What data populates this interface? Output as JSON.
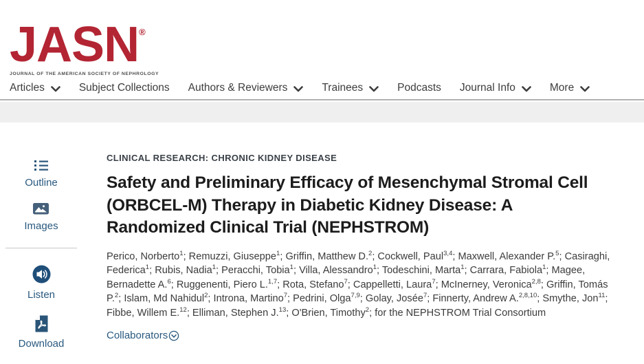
{
  "brand": {
    "logo_text": "JASN",
    "registered_mark": "®",
    "tagline": "JOURNAL OF THE AMERICAN SOCIETY OF NEPHROLOGY",
    "logo_color": "#b32533"
  },
  "nav": {
    "items": [
      {
        "label": "Articles",
        "has_dropdown": true
      },
      {
        "label": "Subject Collections",
        "has_dropdown": false
      },
      {
        "label": "Authors & Reviewers",
        "has_dropdown": true
      },
      {
        "label": "Trainees",
        "has_dropdown": true
      },
      {
        "label": "Podcasts",
        "has_dropdown": false
      },
      {
        "label": "Journal Info",
        "has_dropdown": true
      },
      {
        "label": "More",
        "has_dropdown": true
      }
    ]
  },
  "sidebar": {
    "link_color": "#29597f",
    "items": [
      {
        "label": "Outline",
        "icon": "outline-list-icon"
      },
      {
        "label": "Images",
        "icon": "images-icon"
      },
      {
        "label": "Listen",
        "icon": "listen-speaker-icon"
      },
      {
        "label": "Download",
        "icon": "download-pdf-icon"
      }
    ]
  },
  "article": {
    "category": "CLINICAL RESEARCH: CHRONIC KIDNEY DISEASE",
    "title": "Safety and Preliminary Efficacy of Mesenchymal Stromal Cell (ORBCEL-M) Therapy in Diabetic Kidney Disease: A Randomized Clinical Trial (NEPHSTROM)",
    "authors": [
      {
        "name": "Perico, Norberto",
        "sup": "1"
      },
      {
        "name": "Remuzzi, Giuseppe",
        "sup": "1"
      },
      {
        "name": "Griffin, Matthew D.",
        "sup": "2"
      },
      {
        "name": "Cockwell, Paul",
        "sup": "3,4"
      },
      {
        "name": "Maxwell, Alexander P.",
        "sup": "5"
      },
      {
        "name": "Casiraghi, Federica",
        "sup": "1"
      },
      {
        "name": "Rubis, Nadia",
        "sup": "1"
      },
      {
        "name": "Peracchi, Tobia",
        "sup": "1"
      },
      {
        "name": "Villa, Alessandro",
        "sup": "1"
      },
      {
        "name": "Todeschini, Marta",
        "sup": "1"
      },
      {
        "name": "Carrara, Fabiola",
        "sup": "1"
      },
      {
        "name": "Magee, Bernadette A.",
        "sup": "6"
      },
      {
        "name": "Ruggenenti, Piero L.",
        "sup": "1,7"
      },
      {
        "name": "Rota, Stefano",
        "sup": "7"
      },
      {
        "name": "Cappelletti, Laura",
        "sup": "7"
      },
      {
        "name": "McInerney, Veronica",
        "sup": "2,8"
      },
      {
        "name": "Griffin, Tomás P.",
        "sup": "2"
      },
      {
        "name": "Islam, Md Nahidul",
        "sup": "2"
      },
      {
        "name": "Introna, Martino",
        "sup": "7"
      },
      {
        "name": "Pedrini, Olga",
        "sup": "7,9"
      },
      {
        "name": "Golay, Josée",
        "sup": "7"
      },
      {
        "name": "Finnerty, Andrew A.",
        "sup": "2,8,10"
      },
      {
        "name": "Smythe, Jon",
        "sup": "11"
      },
      {
        "name": "Fibbe, Willem E.",
        "sup": "12"
      },
      {
        "name": "Elliman, Stephen J.",
        "sup": "13"
      },
      {
        "name": "O'Brien, Timothy",
        "sup": "2"
      }
    ],
    "consortium": "for the NEPHSTROM Trial Consortium",
    "collaborators_label": "Collaborators"
  }
}
